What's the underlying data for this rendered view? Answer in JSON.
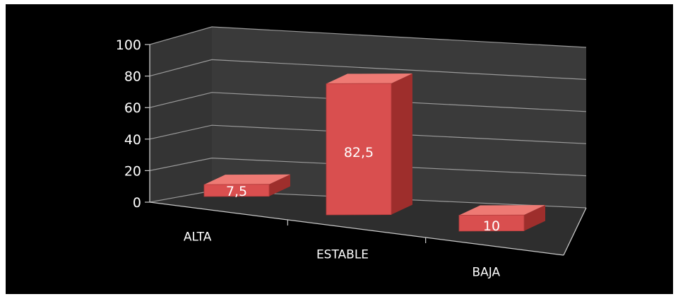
{
  "chart_data": {
    "type": "bar",
    "categories": [
      "ALTA",
      "ESTABLE",
      "BAJA"
    ],
    "values": [
      7.5,
      82.5,
      10
    ],
    "data_labels": [
      "7,5",
      "82,5",
      "10"
    ],
    "y_ticks": [
      "0",
      "20",
      "40",
      "60",
      "80",
      "100"
    ],
    "ylim": [
      0,
      100
    ],
    "grid": true,
    "legend": "none",
    "colors": {
      "background": "#000000",
      "wall": "#3a3a3a",
      "floor": "#2e2e2e",
      "gridline": "#9a9a9a",
      "bar_front": "#d94f4f",
      "bar_top": "#ee7a74",
      "bar_side": "#9e2e2c"
    }
  }
}
